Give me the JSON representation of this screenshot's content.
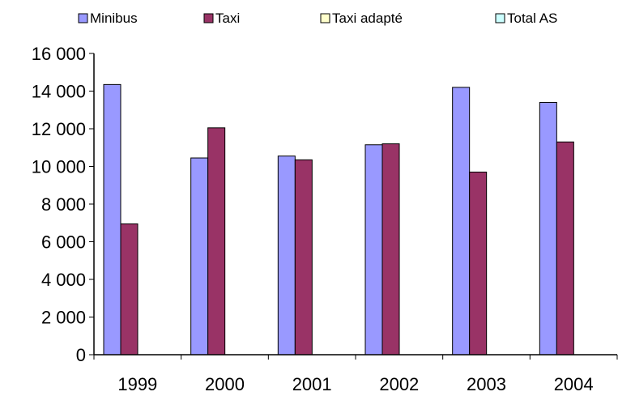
{
  "chart_data": {
    "type": "bar",
    "categories": [
      "1999",
      "2000",
      "2001",
      "2002",
      "2003",
      "2004"
    ],
    "series": [
      {
        "name": "Minibus",
        "color": "#9999ff",
        "values": [
          14350,
          10450,
          10550,
          11150,
          14200,
          13400
        ]
      },
      {
        "name": "Taxi",
        "color": "#993366",
        "values": [
          6950,
          12050,
          10350,
          11200,
          9700,
          11300
        ]
      },
      {
        "name": "Taxi adapté",
        "color": "#ffffcc",
        "values": [
          0,
          0,
          0,
          0,
          0,
          0
        ]
      },
      {
        "name": "Total AS",
        "color": "#ccffff",
        "values": [
          0,
          0,
          0,
          0,
          0,
          0
        ]
      }
    ],
    "ylim": [
      0,
      16000
    ],
    "yticks": [
      0,
      2000,
      4000,
      6000,
      8000,
      10000,
      12000,
      14000,
      16000
    ],
    "ytick_labels": [
      "0",
      "2 000",
      "4 000",
      "6 000",
      "8 000",
      "10 000",
      "12 000",
      "14 000",
      "16 000"
    ],
    "grid": false,
    "legend_position": "top",
    "title": "",
    "xlabel": "",
    "ylabel": ""
  }
}
